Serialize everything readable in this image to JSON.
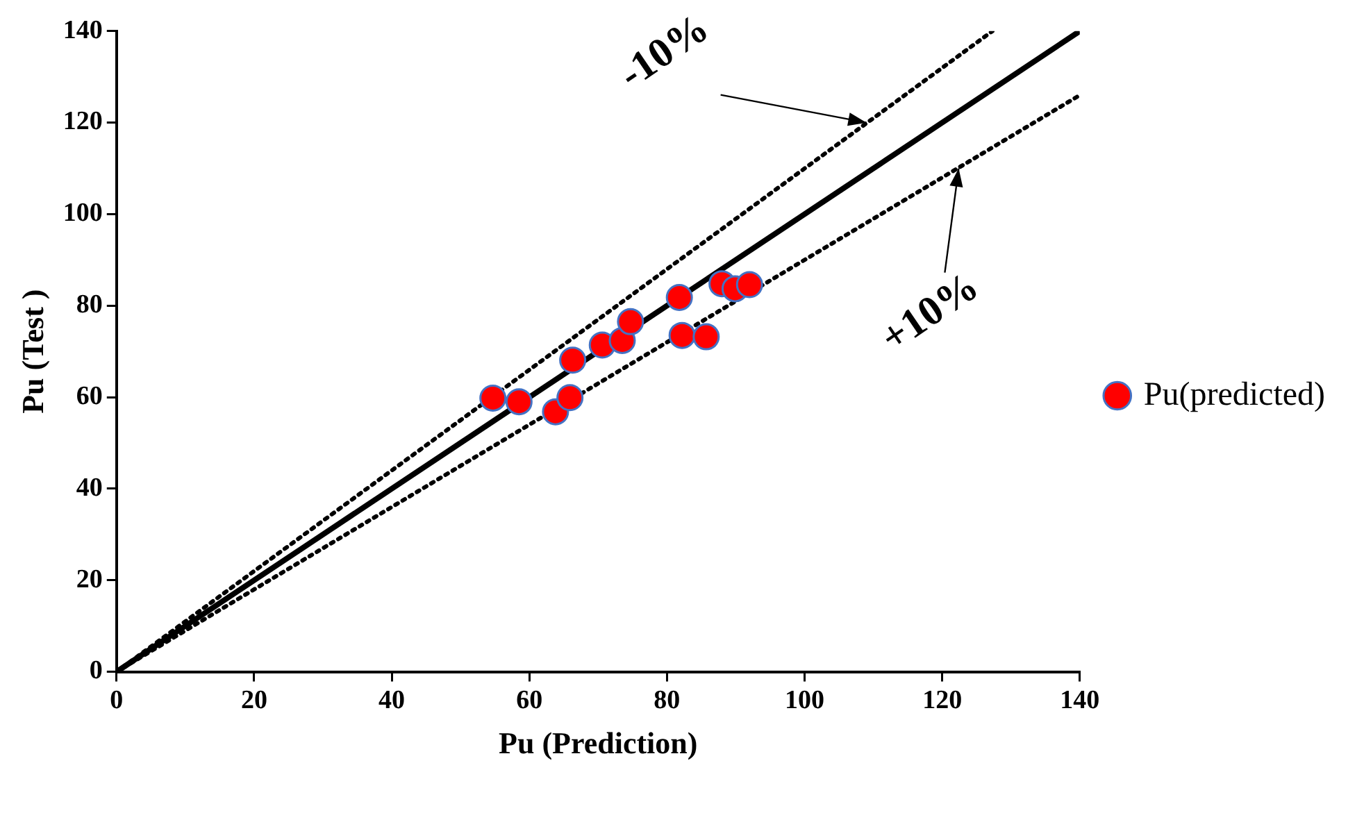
{
  "chart_data": {
    "type": "scatter",
    "xlabel": "Pu (Prediction)",
    "ylabel": "Pu (Test )",
    "xlim": [
      0,
      140
    ],
    "ylim": [
      0,
      140
    ],
    "xticks": [
      0,
      20,
      40,
      60,
      80,
      100,
      120,
      140
    ],
    "yticks": [
      0,
      20,
      40,
      60,
      80,
      100,
      120,
      140
    ],
    "legend": "right",
    "marker": "circle",
    "series": [
      {
        "name": "Pu(predicted)",
        "color": "#ff0000",
        "x": [
          54.7,
          58.5,
          63.8,
          65.9,
          66.3,
          70.6,
          73.5,
          74.7,
          81.8,
          82.2,
          85.7,
          88.0,
          89.9,
          92.0
        ],
        "values": [
          59.8,
          59.0,
          56.8,
          59.9,
          68.1,
          71.4,
          72.4,
          76.5,
          81.8,
          73.5,
          73.2,
          84.8,
          83.7,
          84.6
        ]
      },
      {
        "type": "line",
        "color": "#000000",
        "marker": "none",
        "line_style": "solid",
        "x": [
          0,
          140
        ],
        "values": [
          0,
          140
        ]
      },
      {
        "type": "line",
        "color": "#000000",
        "marker": "none",
        "line_style": "dotted",
        "x": [
          0,
          127.3
        ],
        "values": [
          0,
          140
        ]
      },
      {
        "type": "line",
        "color": "#000000",
        "marker": "none",
        "line_style": "dotted",
        "x": [
          0,
          140
        ],
        "values": [
          0,
          126
        ]
      }
    ],
    "annotations": [
      {
        "text": "-10%",
        "x": 109,
        "y": 120
      },
      {
        "text": "+10%",
        "x": 122.4,
        "y": 110
      }
    ]
  }
}
